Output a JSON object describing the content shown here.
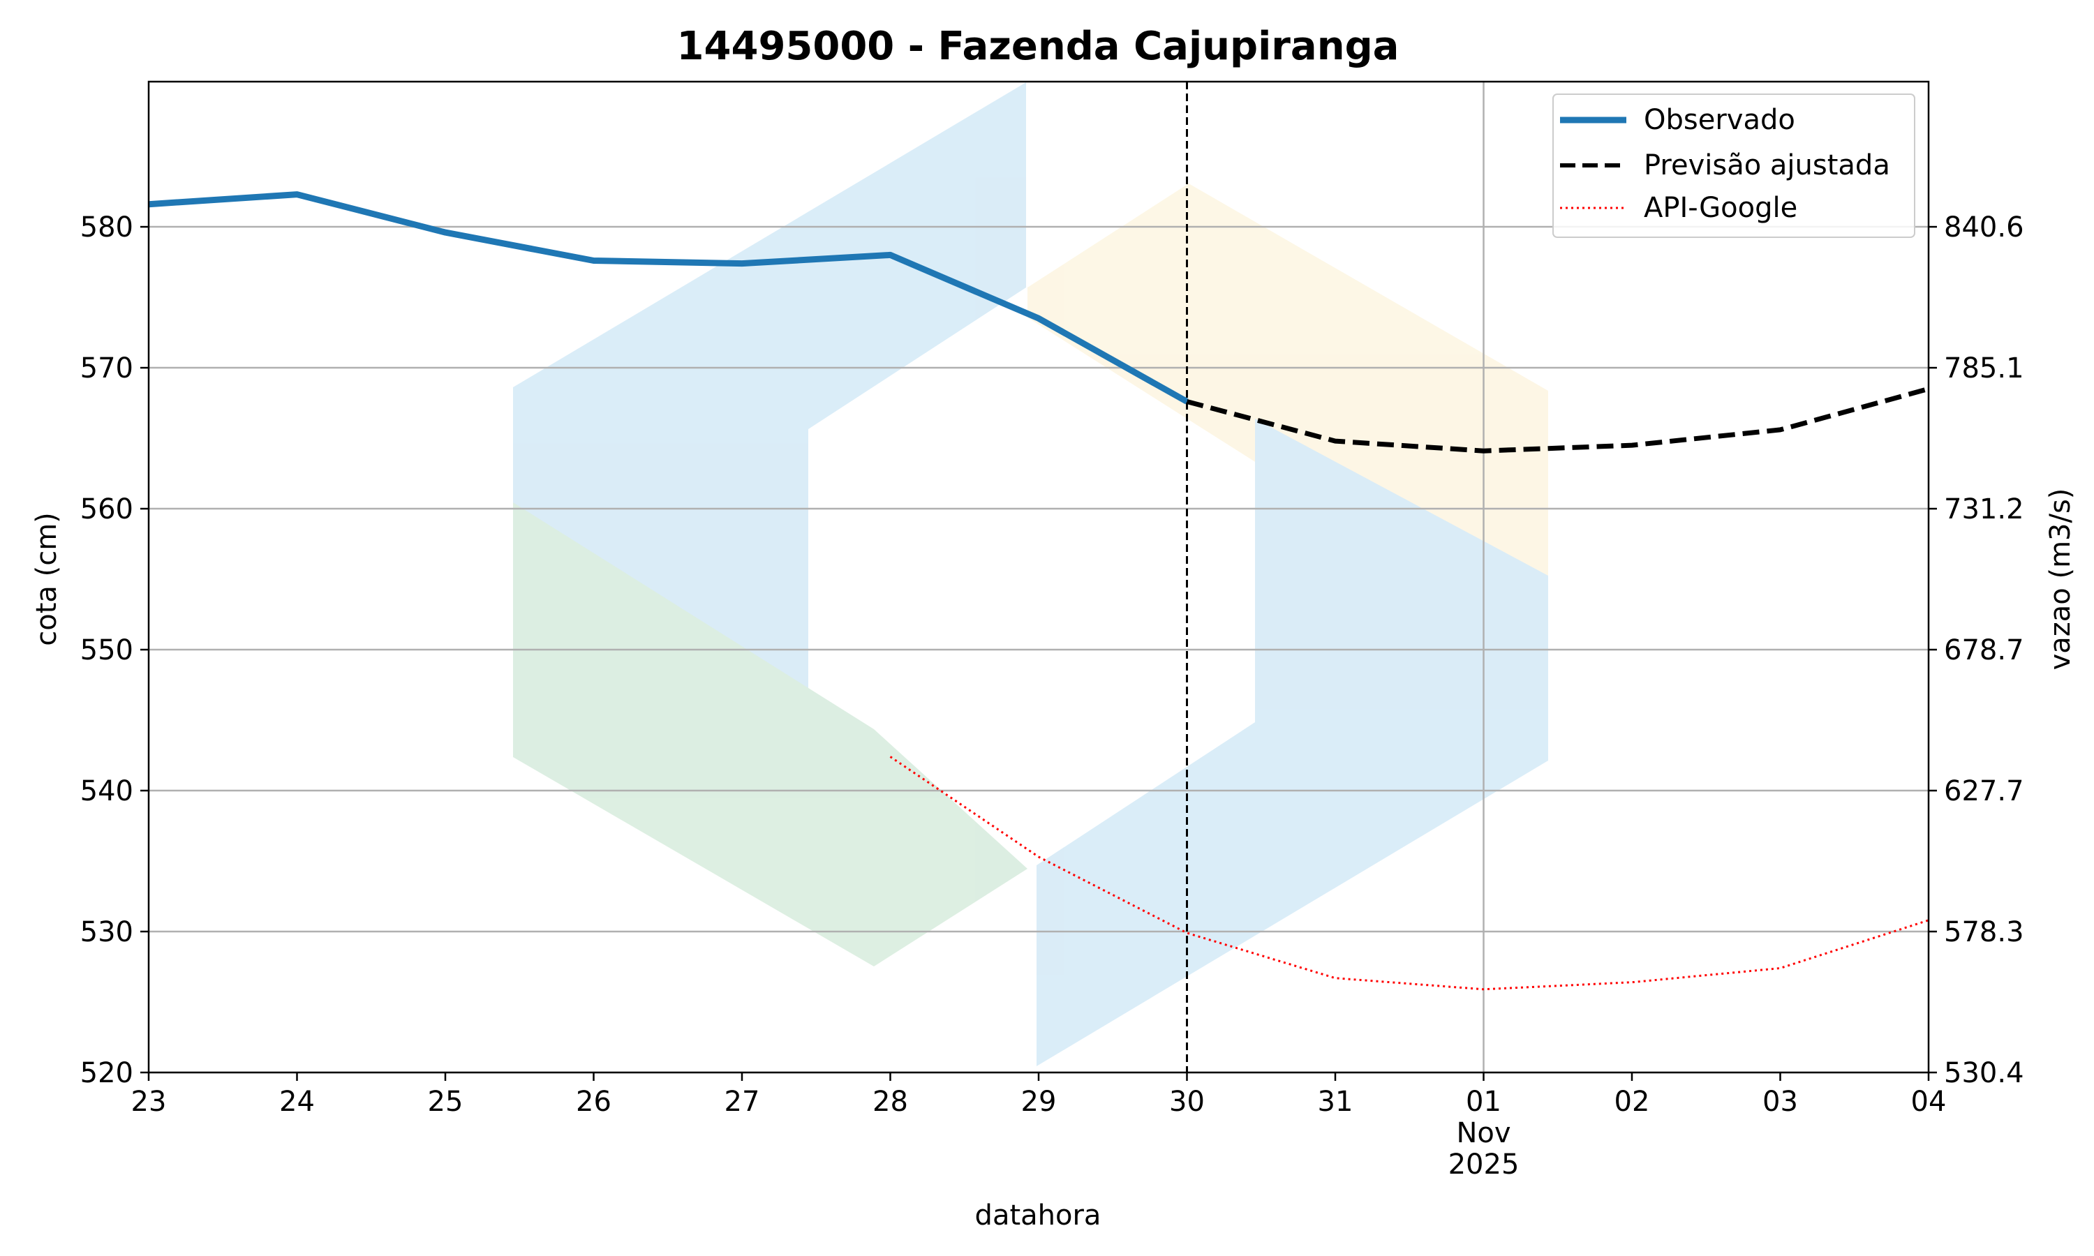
{
  "chart_data": {
    "type": "line",
    "title": "14495000 - Fazenda Cajupiranga",
    "xlabel": "datahora",
    "ylabel": "cota (cm)",
    "y2label": "vazao (m3/s)",
    "x_ticks": [
      "23",
      "24",
      "25",
      "26",
      "27",
      "28",
      "29",
      "30",
      "31",
      "01",
      "02",
      "03",
      "04"
    ],
    "x_tick_sublabel": {
      "month": "Nov",
      "year": "2025"
    },
    "x_dates": [
      "2025-10-23",
      "2025-10-24",
      "2025-10-25",
      "2025-10-26",
      "2025-10-27",
      "2025-10-28",
      "2025-10-29",
      "2025-10-30",
      "2025-10-31",
      "2025-11-01",
      "2025-11-02",
      "2025-11-03",
      "2025-11-04"
    ],
    "xlim": [
      "2025-10-23",
      "2025-11-04"
    ],
    "ylim": [
      520,
      590.3
    ],
    "y_ticks": [
      520,
      530,
      540,
      550,
      560,
      570,
      580
    ],
    "y2_tick_labels": [
      "530.4",
      "578.3",
      "627.7",
      "678.7",
      "731.2",
      "785.1",
      "840.6"
    ],
    "grid": true,
    "forecast_start": "2025-10-30",
    "legend_placement": "top-right",
    "series": [
      {
        "name": "Observado",
        "color": "#1f77b4",
        "style": "solid",
        "x": [
          "2025-10-23",
          "2025-10-24",
          "2025-10-25",
          "2025-10-26",
          "2025-10-27",
          "2025-10-28",
          "2025-10-29",
          "2025-10-30"
        ],
        "y": [
          581.6,
          582.3,
          579.6,
          577.6,
          577.4,
          578.0,
          573.5,
          567.6
        ]
      },
      {
        "name": "Previsão ajustada",
        "color": "#000000",
        "style": "dashed",
        "x": [
          "2025-10-30",
          "2025-10-31",
          "2025-11-01",
          "2025-11-02",
          "2025-11-03",
          "2025-11-04"
        ],
        "y": [
          567.6,
          564.8,
          564.1,
          564.5,
          565.6,
          568.5
        ]
      },
      {
        "name": "API-Google",
        "color": "#ff0000",
        "style": "dotted",
        "x": [
          "2025-10-28",
          "2025-10-29",
          "2025-10-30",
          "2025-10-31",
          "2025-11-01",
          "2025-11-02",
          "2025-11-03",
          "2025-11-04"
        ],
        "y": [
          542.4,
          535.3,
          529.9,
          526.7,
          525.9,
          526.4,
          527.4,
          530.8
        ]
      }
    ]
  }
}
